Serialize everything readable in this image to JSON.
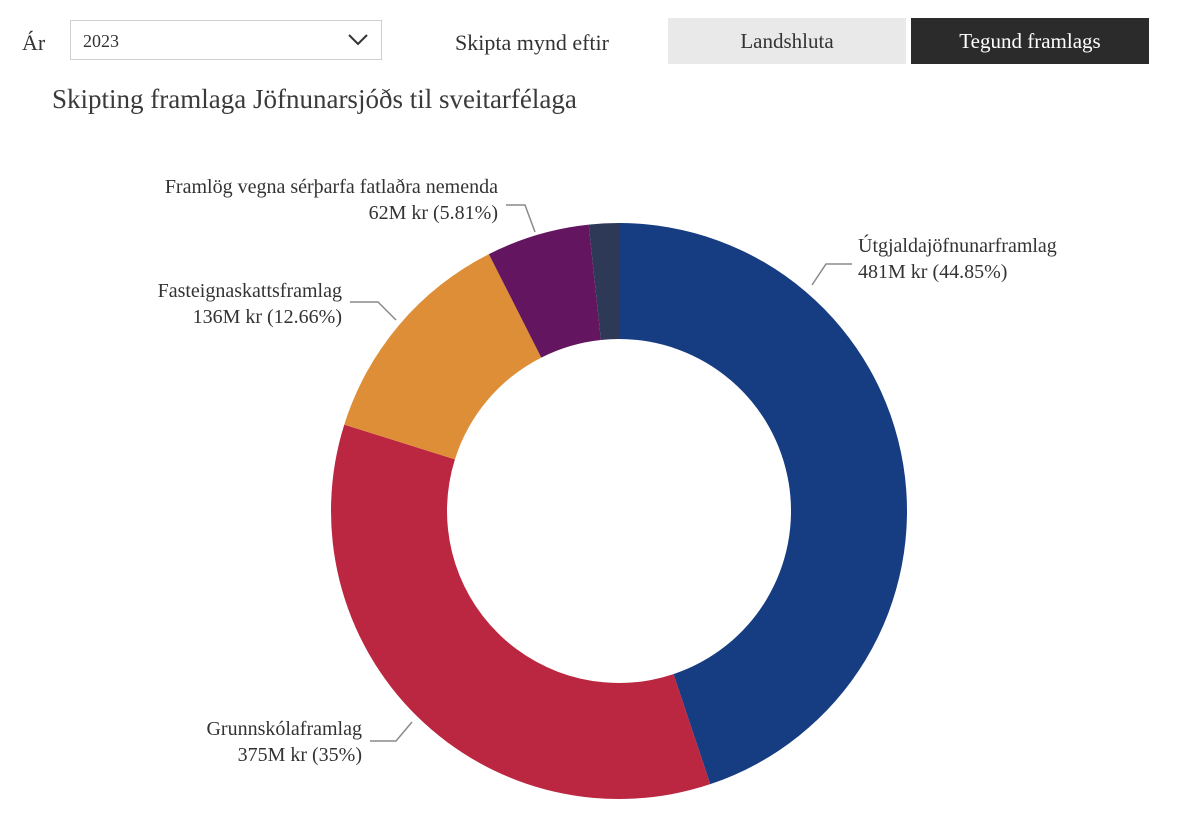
{
  "filters": {
    "year_label": "Ár",
    "year_value": "2023",
    "split_label": "Skipta mynd eftir",
    "options": [
      "Landshluta",
      "Tegund framlags"
    ],
    "selected": "Tegund framlags"
  },
  "chart_data": {
    "type": "pie",
    "title": "Skipting framlaga Jöfnunarsjóðs til sveitarfélaga",
    "donut": true,
    "slices": [
      {
        "label": "Útgjaldajöfnunarframlag",
        "value_text": "481M kr (44.85%)",
        "value": 481,
        "percent": 44.85,
        "color": "#163C82"
      },
      {
        "label": "Grunnskólaframlag",
        "value_text": "375M kr (35%)",
        "value": 375,
        "percent": 35.0,
        "color": "#BB2640"
      },
      {
        "label": "Fasteignaskattsframlag",
        "value_text": "136M kr (12.66%)",
        "value": 136,
        "percent": 12.66,
        "color": "#DE8E37"
      },
      {
        "label": "Framlög vegna sérþarfa fatlaðra nemenda",
        "value_text": "62M kr (5.81%)",
        "value": 62,
        "percent": 5.81,
        "color": "#63165F"
      },
      {
        "label": "",
        "value_text": "",
        "value": 18,
        "percent": 1.68,
        "color": "#2E3957"
      }
    ]
  }
}
